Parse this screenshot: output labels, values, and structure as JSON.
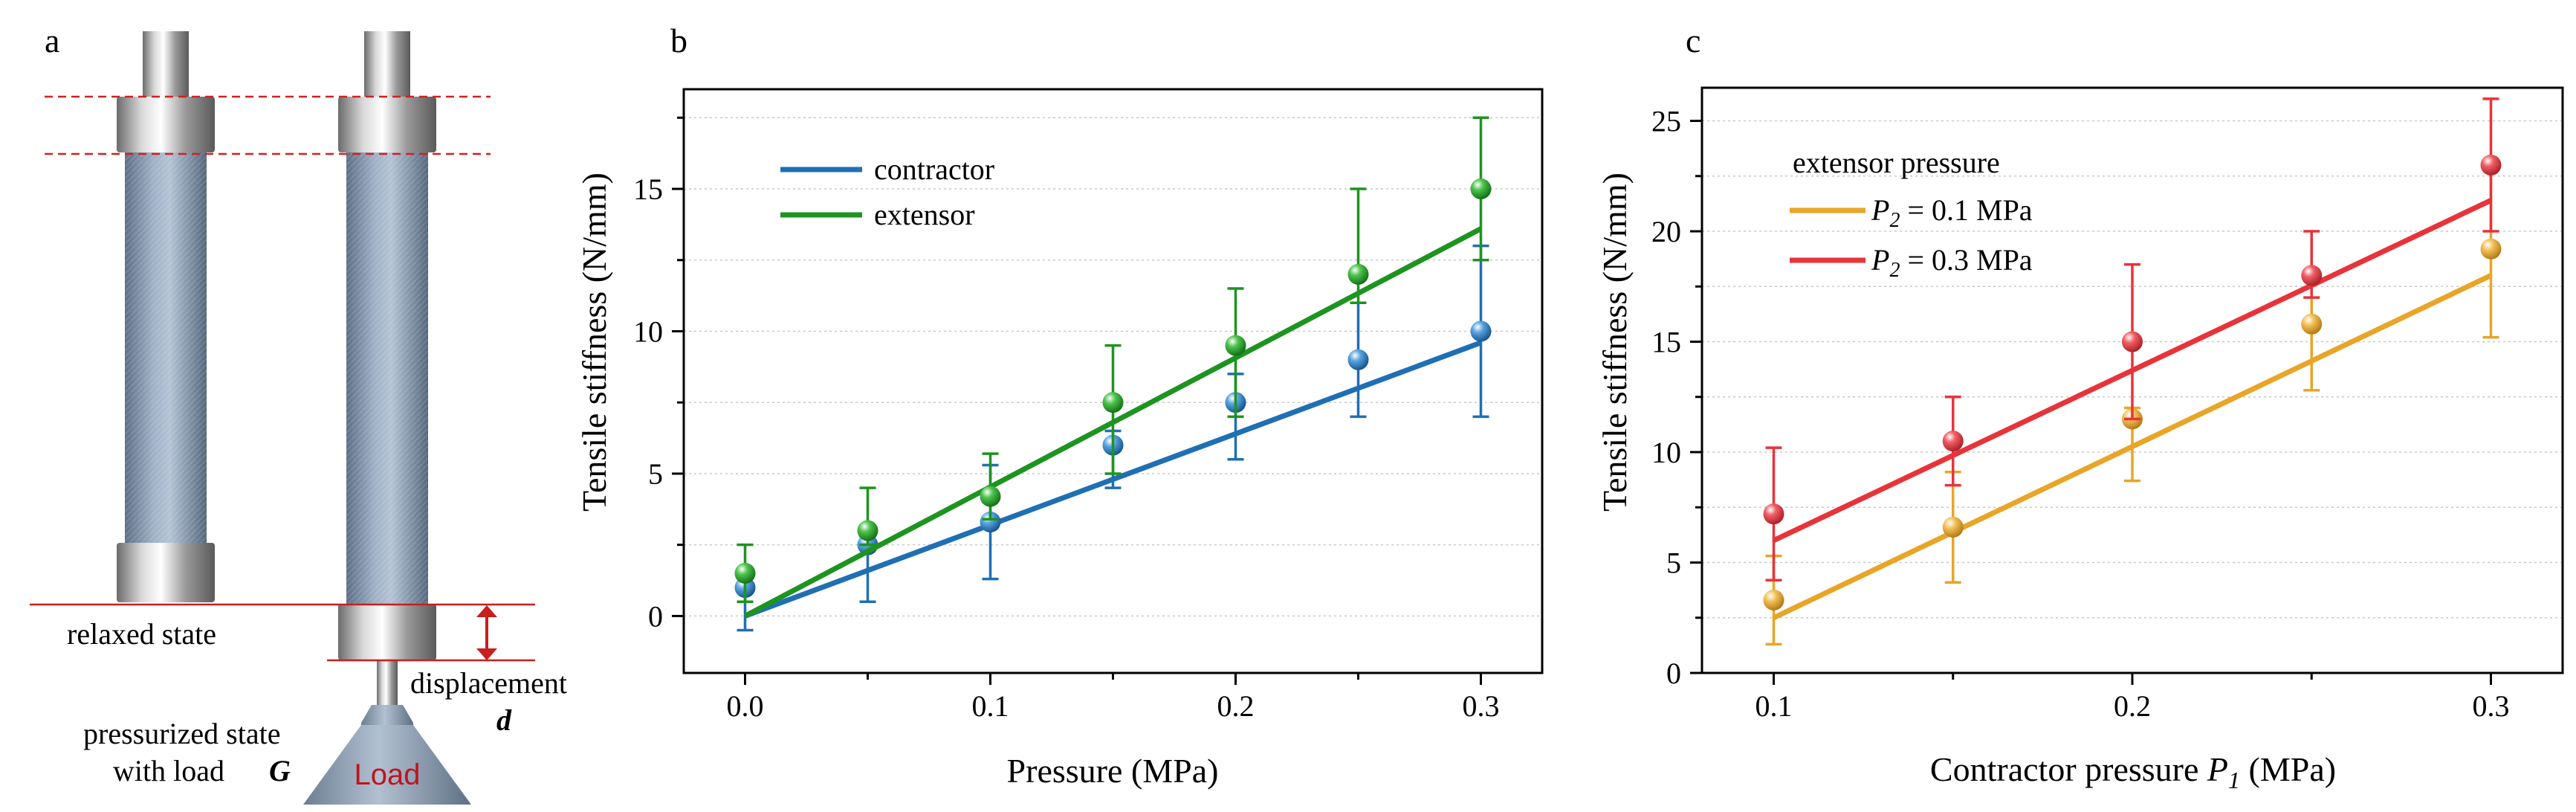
{
  "panel_a": {
    "letter": "a",
    "relaxed_label": "relaxed state",
    "displacement_label": "displacement",
    "displacement_symbol": "d",
    "pressurized_line1": "pressurized state",
    "pressurized_line2": "with load",
    "load_symbol": "G",
    "load_label": "Load"
  },
  "chart_data": [
    {
      "panel": "b",
      "type": "scatter",
      "title": "",
      "xlabel": "Pressure (MPa)",
      "ylabel": "Tensile stiffness (N/mm)",
      "xlim": [
        -0.025,
        0.325
      ],
      "ylim": [
        -2,
        18.5
      ],
      "xticks": [
        0.0,
        0.1,
        0.2,
        0.3
      ],
      "xtick_labels": [
        "0.0",
        "0.1",
        "0.2",
        "0.3"
      ],
      "yticks": [
        0,
        5,
        10,
        15
      ],
      "ytick_labels": [
        "0",
        "5",
        "10",
        "15"
      ],
      "legend_position": "top-left",
      "series": [
        {
          "name": "contractor",
          "color": "#1f6fb4",
          "x": [
            0.0,
            0.05,
            0.1,
            0.15,
            0.2,
            0.25,
            0.3
          ],
          "y": [
            1.0,
            2.5,
            3.3,
            6.0,
            7.5,
            9.0,
            10.0
          ],
          "err_low": [
            1.5,
            2.0,
            2.0,
            1.5,
            2.0,
            2.0,
            3.0
          ],
          "err_high": [
            0.5,
            0.3,
            2.0,
            0.5,
            1.0,
            2.0,
            3.0
          ],
          "fit": [
            [
              0.0,
              0.0
            ],
            [
              0.3,
              9.6
            ]
          ]
        },
        {
          "name": "extensor",
          "color": "#1e9420",
          "x": [
            0.0,
            0.05,
            0.1,
            0.15,
            0.2,
            0.25,
            0.3
          ],
          "y": [
            1.5,
            3.0,
            4.2,
            7.5,
            9.5,
            12.0,
            15.0
          ],
          "err_low": [
            1.0,
            0.5,
            0.8,
            2.5,
            2.5,
            1.0,
            2.5
          ],
          "err_high": [
            1.0,
            1.5,
            1.5,
            2.0,
            2.0,
            3.0,
            2.5
          ],
          "fit": [
            [
              0.0,
              0.0
            ],
            [
              0.3,
              13.6
            ]
          ]
        }
      ]
    },
    {
      "panel": "c",
      "type": "scatter",
      "title": "",
      "xlabel_main": "Contractor pressure",
      "xlabel_symbol": "P",
      "xlabel_sub": "1",
      "xlabel_unit": "(MPa)",
      "ylabel": "Tensile stiffness (N/mm)",
      "xlim": [
        0.08,
        0.32
      ],
      "ylim": [
        0,
        26.5
      ],
      "xticks": [
        0.1,
        0.2,
        0.3
      ],
      "xtick_labels": [
        "0.1",
        "0.2",
        "0.3"
      ],
      "yticks": [
        0,
        5,
        10,
        15,
        20,
        25
      ],
      "ytick_labels": [
        "0",
        "5",
        "10",
        "15",
        "20",
        "25"
      ],
      "legend_title": "extensor pressure",
      "legend_position": "top-left",
      "series": [
        {
          "name": "P2 = 0.1 MPa",
          "name_symbol": "P",
          "name_sub": "2",
          "name_value": "= 0.1 MPa",
          "color": "#e8a528",
          "x": [
            0.1,
            0.15,
            0.2,
            0.25,
            0.3
          ],
          "y": [
            3.3,
            6.6,
            11.5,
            15.8,
            19.2
          ],
          "err_low": [
            2.0,
            2.5,
            2.8,
            3.0,
            4.0
          ],
          "err_high": [
            2.0,
            2.5,
            0.5,
            2.0,
            4.0
          ],
          "fit": [
            [
              0.1,
              2.5
            ],
            [
              0.3,
              18.0
            ]
          ]
        },
        {
          "name": "P2 = 0.3 MPa",
          "name_symbol": "P",
          "name_sub": "2",
          "name_value": "= 0.3 MPa",
          "color": "#e8333a",
          "x": [
            0.1,
            0.15,
            0.2,
            0.25,
            0.3
          ],
          "y": [
            7.2,
            10.5,
            15.0,
            18.0,
            23.0
          ],
          "err_low": [
            3.0,
            2.0,
            3.5,
            1.0,
            3.0
          ],
          "err_high": [
            3.0,
            2.0,
            3.5,
            2.0,
            3.0
          ],
          "fit": [
            [
              0.1,
              6.0
            ],
            [
              0.3,
              21.4
            ]
          ]
        }
      ]
    }
  ]
}
